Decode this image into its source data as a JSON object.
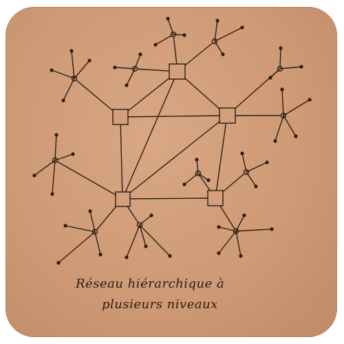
{
  "caption": {
    "line1": "Réseau hiérarchique à",
    "line2": "plusieurs niveaux"
  },
  "colors": {
    "paper": "#cf9a76",
    "ink": "#2a1d14"
  }
}
